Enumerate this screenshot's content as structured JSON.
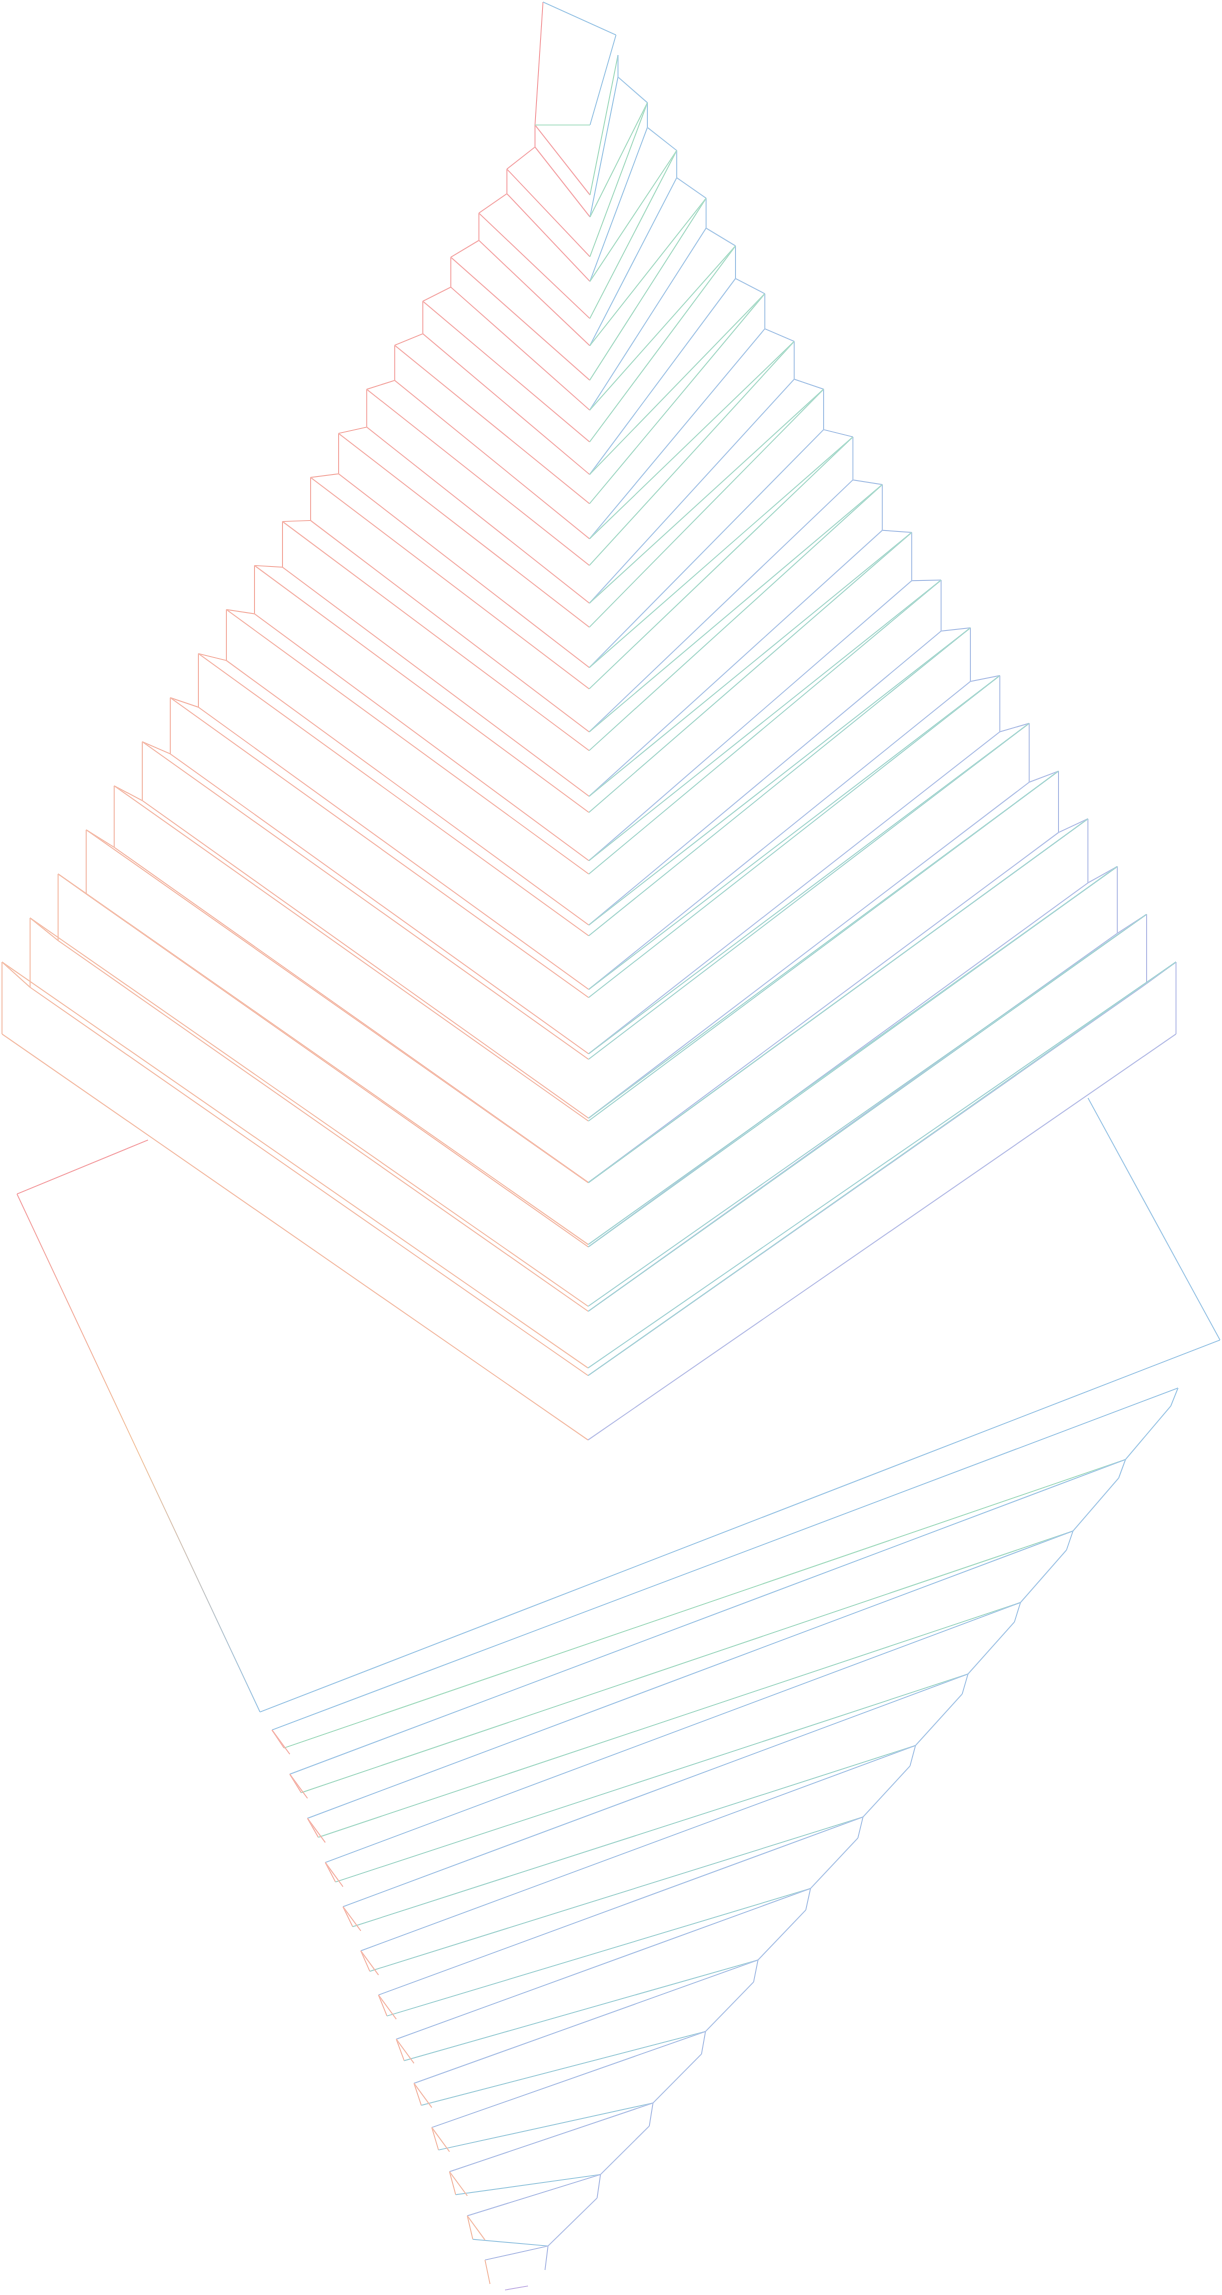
{
  "artwork": {
    "subject": "ethereum-logo-wireframe",
    "upper_layers": 20,
    "lower_layers": 13,
    "colors": {
      "warm": "#f4a3a6",
      "peach": "#f3c7a4",
      "green": "#a6dcc1",
      "blue": "#9ec7e6",
      "violet": "#c4b4e6",
      "background": "#ffffff"
    }
  }
}
